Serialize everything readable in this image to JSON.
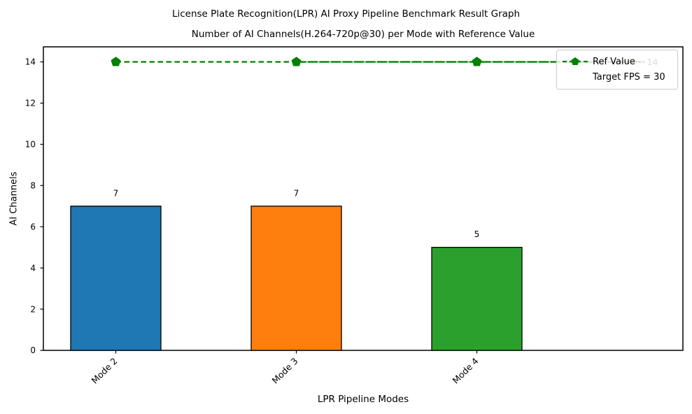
{
  "figure": {
    "suptitle": "License Plate Recognition(LPR) AI Proxy Pipeline Benchmark Result Graph",
    "axes_title": "Number of AI Channels(H.264-720p@30) per Mode with Reference Value"
  },
  "chart_data": {
    "type": "bar",
    "categories": [
      "Mode 2",
      "Mode 3",
      "Mode 4"
    ],
    "values": [
      7,
      7,
      5
    ],
    "bar_labels": [
      "7",
      "7",
      "5"
    ],
    "bar_colors": [
      "#1f77b4",
      "#ff7f0e",
      "#2ca02c"
    ],
    "bar_edge_color": "#000000",
    "xlabel": "LPR Pipeline Modes",
    "ylabel": "AI Channels",
    "ylim": [
      0,
      14.73
    ],
    "yticks": [
      0,
      2,
      4,
      6,
      8,
      10,
      12,
      14
    ],
    "grid": false,
    "xtick_rotation_deg": 45,
    "reference": {
      "value": 14,
      "end_label": "14",
      "color": "#008000",
      "linestyle": "dashed",
      "marker": "pentagon"
    },
    "legend": {
      "position": "upper right",
      "entries": [
        {
          "label": "Ref Value",
          "handle": "dashed-line-pentagon"
        },
        {
          "label": "Target FPS = 30",
          "handle": "none"
        }
      ]
    }
  }
}
